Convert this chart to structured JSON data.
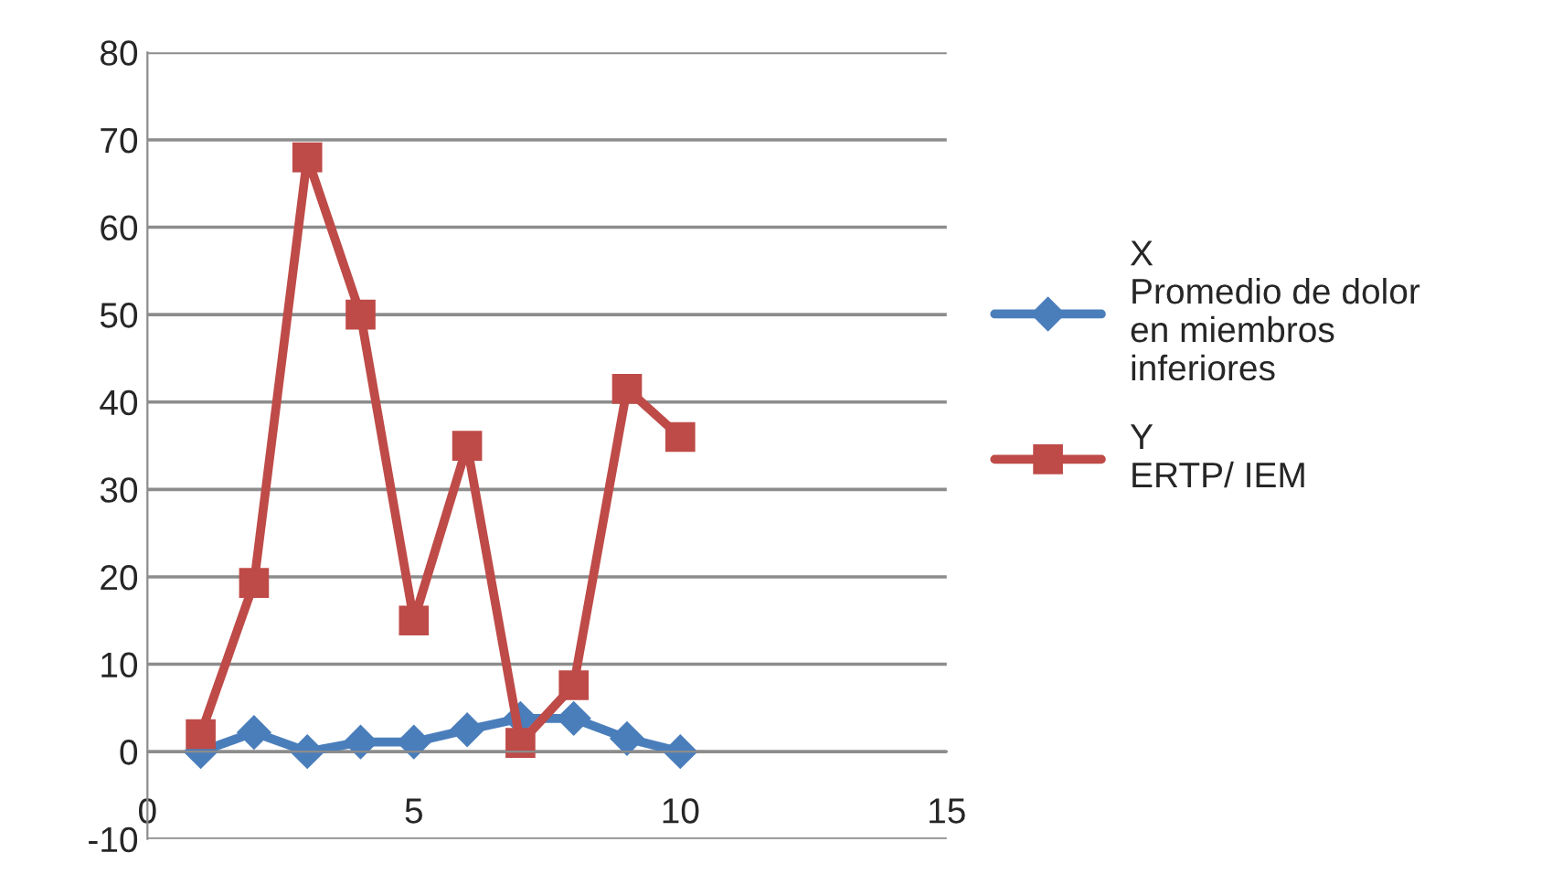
{
  "chart_data": {
    "type": "line",
    "x": [
      1,
      2,
      3,
      4,
      5,
      6,
      7,
      8,
      9,
      10
    ],
    "series": [
      {
        "name": "X\nPromedio de dolor\nen miembros\ninferiores",
        "color": "#4a7ebb",
        "marker": "diamond",
        "values": [
          0,
          2.2,
          0,
          1.1,
          1.1,
          2.5,
          3.8,
          3.8,
          1.5,
          0
        ]
      },
      {
        "name": "Y\nERTP/ IEM",
        "color": "#be4b48",
        "marker": "square",
        "values": [
          2,
          19.3,
          68,
          50,
          15,
          35,
          1,
          7.6,
          41.5,
          36
        ]
      }
    ],
    "xlim": [
      0,
      15
    ],
    "xticks": [
      0,
      5,
      10,
      15
    ],
    "ylim": [
      -10,
      80
    ],
    "yticks": [
      -10,
      0,
      10,
      20,
      30,
      40,
      50,
      60,
      70,
      80
    ],
    "grid": "y",
    "legend": "right",
    "line_style": "solid"
  }
}
